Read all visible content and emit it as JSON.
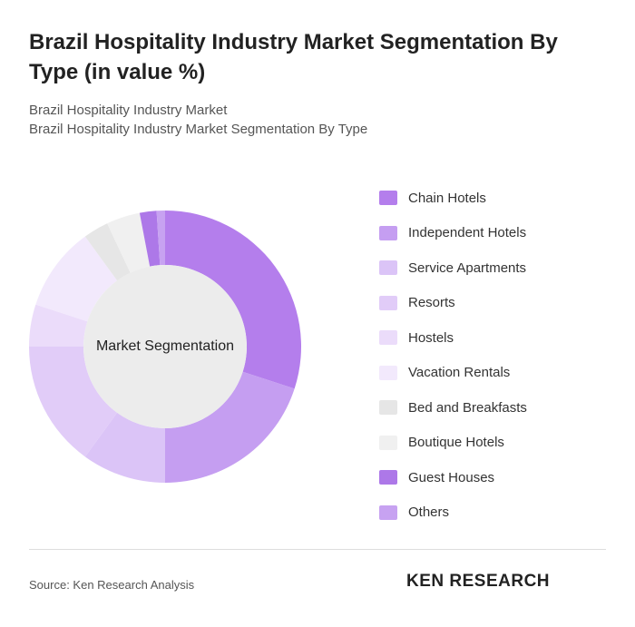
{
  "title": "Brazil Hospitality Industry Market Segmentation By Type (in value %)",
  "subtitle_lines": [
    "Brazil Hospitality Industry Market",
    "Brazil Hospitality Industry Market Segmentation By Type"
  ],
  "source": "Source: Ken Research Analysis",
  "logo": "KEN RESEARCH",
  "chart_data": {
    "type": "donut",
    "center_label": "Market Segmentation",
    "categories": [
      "Chain Hotels",
      "Independent Hotels",
      "Service Apartments",
      "Resorts",
      "Hostels",
      "Vacation Rentals",
      "Bed and Breakfasts",
      "Boutique Hotels",
      "Guest Houses",
      "Others"
    ],
    "values": [
      30,
      20,
      10,
      15,
      5,
      10,
      3,
      4,
      2,
      1
    ],
    "colors": [
      "#b47eec",
      "#c59ef1",
      "#dbc4f7",
      "#e1ccf8",
      "#ebdcfa",
      "#f2e9fc",
      "#e6e6e6",
      "#f0f0f0",
      "#ad78e8",
      "#c7a2f1"
    ]
  }
}
